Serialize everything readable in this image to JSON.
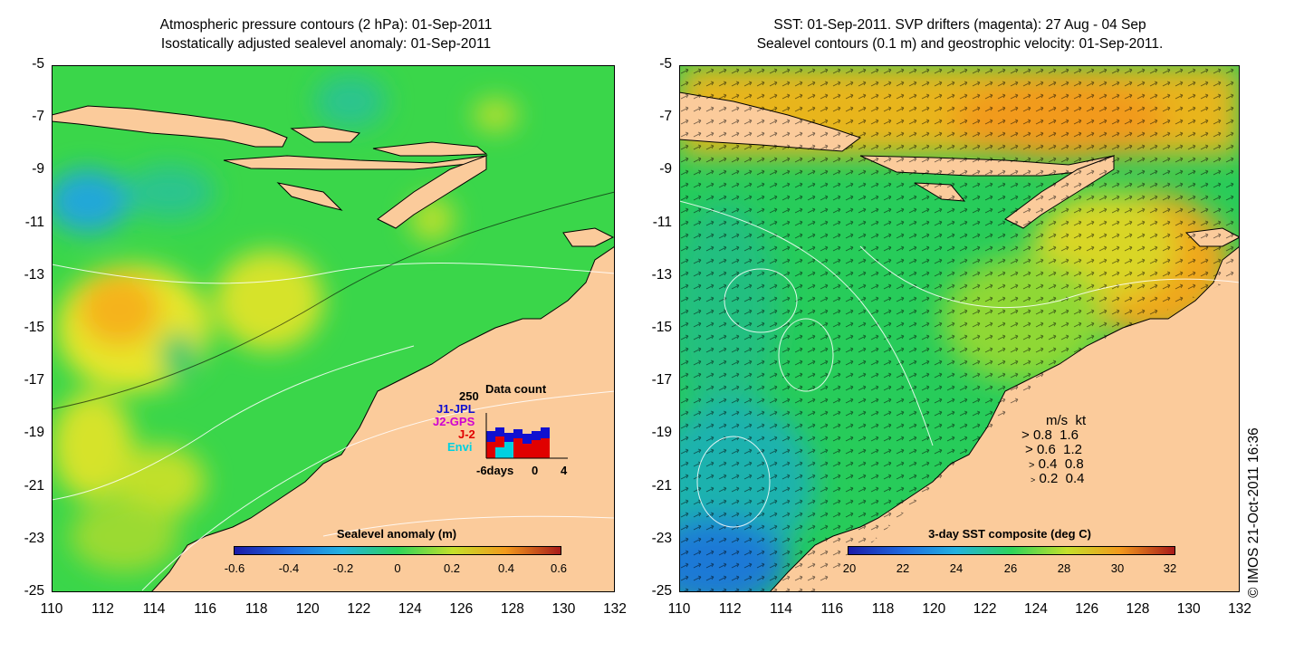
{
  "left_panel": {
    "title_line1": "Atmospheric pressure contours (2 hPa): 01-Sep-2011",
    "title_line2": "Isostatically adjusted sealevel anomaly: 01-Sep-2011",
    "colorbar": {
      "title": "Sealevel anomaly (m)",
      "ticks": [
        "-0.6",
        "-0.4",
        "-0.2",
        "0",
        "0.2",
        "0.4",
        "0.6"
      ],
      "range": [
        -0.6,
        0.6
      ]
    },
    "data_count": {
      "title": "Data count",
      "max_label": "250",
      "series": [
        "J1-JPL",
        "J2-GPS",
        "J-2",
        "Envi"
      ],
      "series_colors": [
        "#1010d0",
        "#d000d0",
        "#e00000",
        "#00d0e0"
      ],
      "x_labels": [
        "-6days",
        "0",
        "4"
      ]
    }
  },
  "right_panel": {
    "title_line1": "SST: 01-Sep-2011. SVP drifters (magenta): 27 Aug - 04 Sep",
    "title_line2": "Sealevel contours (0.1 m) and geostrophic velocity: 01-Sep-2011.",
    "colorbar": {
      "title": "3-day SST composite (deg C)",
      "ticks": [
        "20",
        "22",
        "24",
        "26",
        "28",
        "30",
        "32"
      ],
      "range": [
        20,
        32
      ]
    },
    "velocity_legend": {
      "header_ms": "m/s",
      "header_kt": "kt",
      "rows": [
        {
          "ms": "0.8",
          "kt": "1.6"
        },
        {
          "ms": "0.6",
          "kt": "1.2"
        },
        {
          "ms": "0.4",
          "kt": "0.8"
        },
        {
          "ms": "0.2",
          "kt": "0.4"
        }
      ]
    }
  },
  "axes": {
    "x_ticks": [
      "110",
      "112",
      "114",
      "116",
      "118",
      "120",
      "122",
      "124",
      "126",
      "128",
      "130",
      "132"
    ],
    "y_ticks": [
      "-5",
      "-7",
      "-9",
      "-11",
      "-13",
      "-15",
      "-17",
      "-19",
      "-21",
      "-23",
      "-25"
    ],
    "lon_range": [
      110,
      132
    ],
    "lat_range": [
      -25,
      -5
    ]
  },
  "credit": "© IMOS 21-Oct-2011 16:36",
  "colors": {
    "land": "#fbcb9b",
    "sla_mid": "#33d94c",
    "sst_mid": "#27cc5a"
  }
}
